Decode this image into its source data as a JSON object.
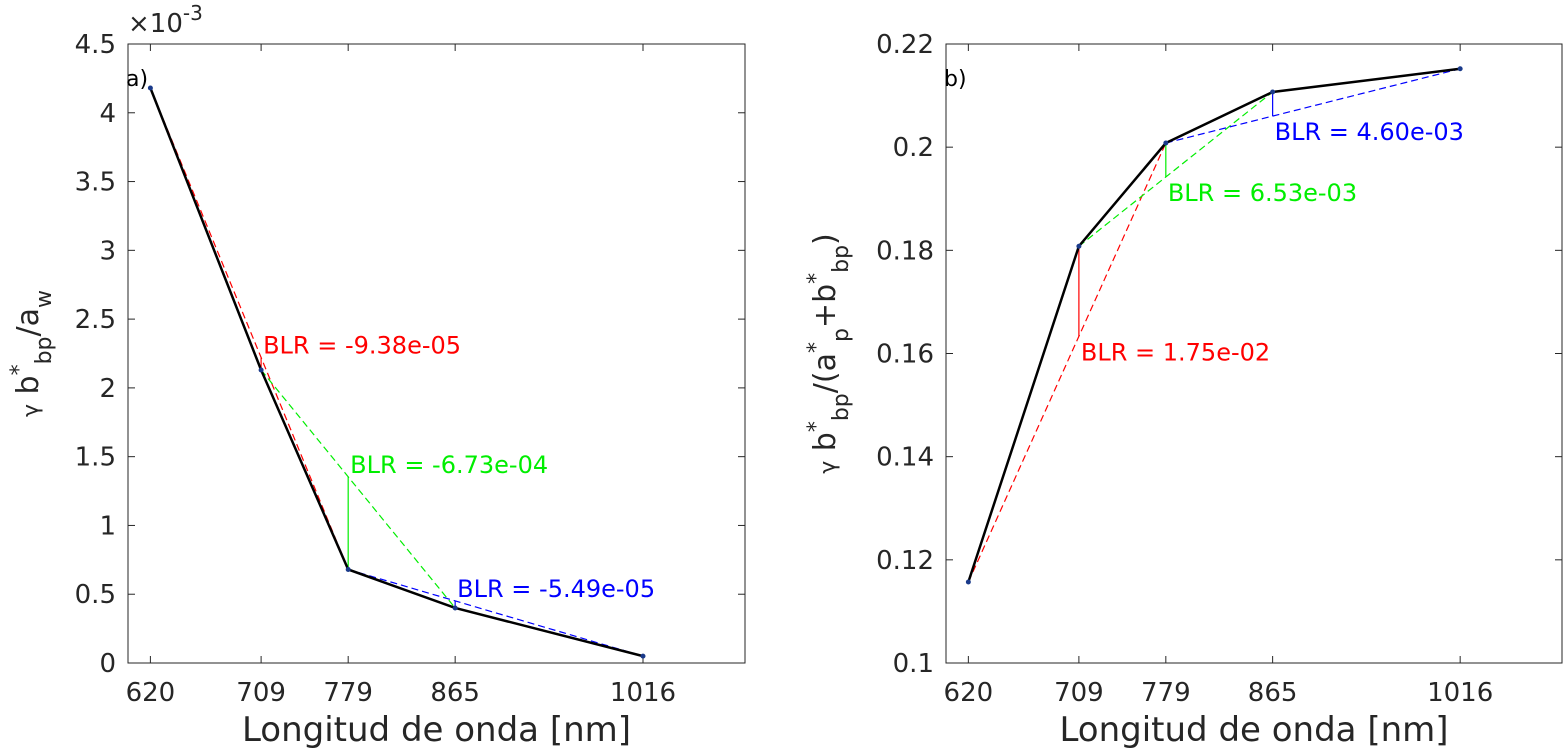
{
  "chart_data": [
    {
      "type": "line",
      "panel_label": "a)",
      "x": [
        620,
        709,
        779,
        865,
        1016
      ],
      "values": [
        4.18,
        2.13,
        0.68,
        0.4,
        0.05
      ],
      "color": "#000000",
      "xlim": [
        602,
        1098
      ],
      "xticks": [
        620,
        709,
        779,
        865,
        1016
      ],
      "ylim": [
        0,
        4.5
      ],
      "yticks": [
        0,
        0.5,
        1,
        1.5,
        2,
        2.5,
        3,
        3.5,
        4,
        4.5
      ],
      "y_multiplier": {
        "base": "×10",
        "exponent": "-3"
      },
      "xlabel": "Longitud de onda [nm]",
      "ylabel": [
        {
          "text": "γ",
          "script": "small"
        },
        {
          "text": " b",
          "script": ""
        },
        {
          "text": "*",
          "script": "sup"
        },
        {
          "text": "bp",
          "script": "sub"
        },
        {
          "text": "/a",
          "script": ""
        },
        {
          "text": "w",
          "script": "sub"
        }
      ],
      "label_position": "above",
      "baselines": [
        {
          "x": [
            620,
            709,
            779
          ],
          "color": "#ff0000",
          "label": "BLR = -9.38e-05"
        },
        {
          "x": [
            709,
            779,
            865
          ],
          "color": "#00ee00",
          "label": "BLR = -6.73e-04"
        },
        {
          "x": [
            779,
            865,
            1016
          ],
          "color": "#0000ff",
          "label": "BLR = -5.49e-05"
        }
      ]
    },
    {
      "type": "line",
      "panel_label": "b)",
      "x": [
        620,
        709,
        779,
        865,
        1016
      ],
      "values": [
        0.1157,
        0.1808,
        0.2008,
        0.2107,
        0.2152
      ],
      "color": "#000000",
      "xlim": [
        602,
        1098
      ],
      "xticks": [
        620,
        709,
        779,
        865,
        1016
      ],
      "ylim": [
        0.1,
        0.22
      ],
      "yticks": [
        0.1,
        0.12,
        0.14,
        0.16,
        0.18,
        0.2,
        0.22
      ],
      "xlabel": "Longitud de onda [nm]",
      "ylabel": [
        {
          "text": "γ",
          "script": "small"
        },
        {
          "text": " b",
          "script": ""
        },
        {
          "text": "*",
          "script": "sup"
        },
        {
          "text": "bp",
          "script": "sub"
        },
        {
          "text": "/(a",
          "script": ""
        },
        {
          "text": "*",
          "script": "sup"
        },
        {
          "text": "p",
          "script": "sub"
        },
        {
          "text": "+b",
          "script": ""
        },
        {
          "text": "*",
          "script": "sup"
        },
        {
          "text": "bp",
          "script": "sub"
        },
        {
          "text": ")",
          "script": ""
        }
      ],
      "label_position": "below",
      "baselines": [
        {
          "x": [
            620,
            709,
            779
          ],
          "color": "#ff0000",
          "label": "BLR = 1.75e-02"
        },
        {
          "x": [
            709,
            779,
            865
          ],
          "color": "#00ee00",
          "label": "BLR = 6.53e-03"
        },
        {
          "x": [
            779,
            865,
            1016
          ],
          "color": "#0000ff",
          "label": "BLR = 4.60e-03"
        }
      ]
    }
  ]
}
